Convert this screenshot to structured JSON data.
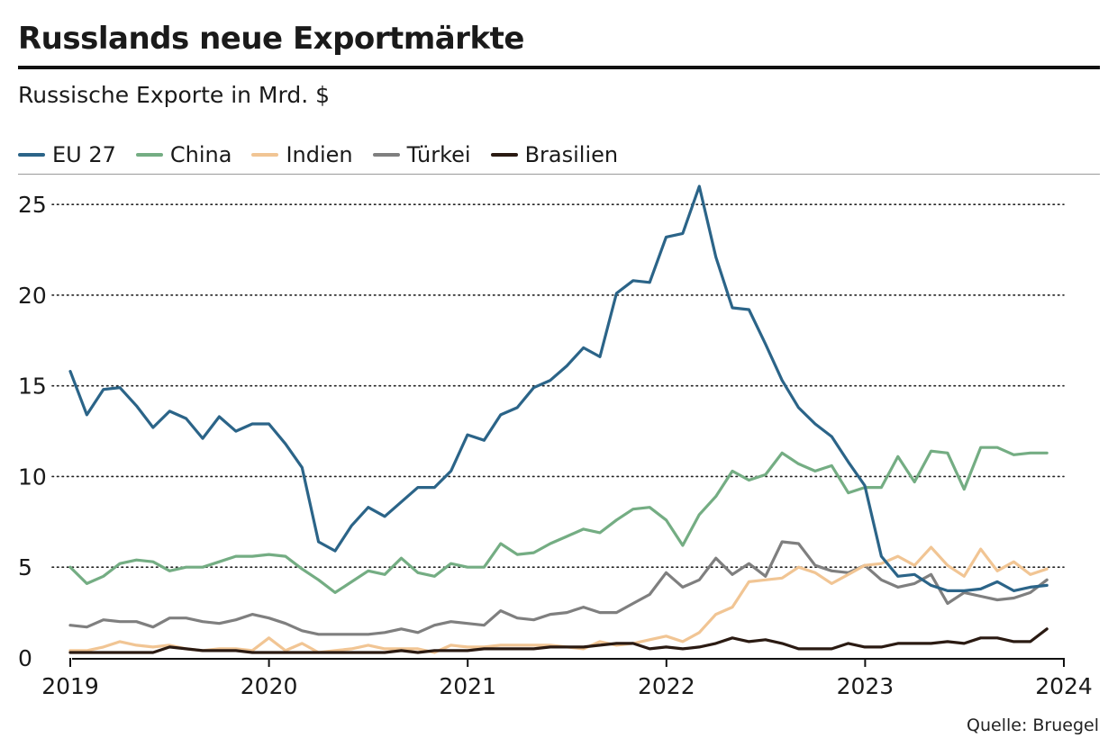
{
  "colors": {
    "eu": "#2b6488",
    "china": "#74ad83",
    "india": "#f1c594",
    "turkey": "#7f7f7f",
    "brazil": "#2a1a12"
  },
  "chart_data": {
    "type": "line",
    "title": "Russlands neue Exportmärkte",
    "subtitle": "Russische Exporte in Mrd. $",
    "source": "Quelle: Bruegel",
    "xlabel": "",
    "ylabel": "",
    "ylim": [
      0,
      26
    ],
    "xlim": [
      2019,
      2024
    ],
    "grid": "horizontal dotted",
    "legend_position": "top-left",
    "x_ticks": [
      "2019",
      "2020",
      "2021",
      "2022",
      "2023",
      "2024"
    ],
    "y_ticks": [
      "0",
      "5",
      "10",
      "15",
      "20",
      "25"
    ],
    "x_start": 2019.0,
    "x_step": 0.0833,
    "series": [
      {
        "key": "eu",
        "name": "EU 27",
        "values": [
          15.8,
          13.4,
          14.8,
          14.9,
          13.9,
          12.7,
          13.6,
          13.2,
          12.1,
          13.3,
          12.5,
          12.9,
          12.9,
          11.8,
          10.5,
          6.4,
          5.9,
          7.3,
          8.3,
          7.8,
          8.6,
          9.4,
          9.4,
          10.3,
          12.3,
          12.0,
          13.4,
          13.8,
          14.9,
          15.3,
          16.1,
          17.1,
          16.6,
          20.1,
          20.8,
          20.7,
          23.2,
          23.4,
          26.0,
          22.1,
          19.3,
          19.2,
          17.3,
          15.3,
          13.8,
          12.9,
          12.2,
          10.8,
          9.5,
          5.6,
          4.5,
          4.6,
          4.0,
          3.7,
          3.7,
          3.8,
          4.2,
          3.7,
          3.9,
          4.0
        ]
      },
      {
        "key": "china",
        "name": "China",
        "values": [
          5.0,
          4.1,
          4.5,
          5.2,
          5.4,
          5.3,
          4.8,
          5.0,
          5.0,
          5.3,
          5.6,
          5.6,
          5.7,
          5.6,
          4.9,
          4.3,
          3.6,
          4.2,
          4.8,
          4.6,
          5.5,
          4.7,
          4.5,
          5.2,
          5.0,
          5.0,
          6.3,
          5.7,
          5.8,
          6.3,
          6.7,
          7.1,
          6.9,
          7.6,
          8.2,
          8.3,
          7.6,
          6.2,
          7.9,
          8.9,
          10.3,
          9.8,
          10.1,
          11.3,
          10.7,
          10.3,
          10.6,
          9.1,
          9.4,
          9.4,
          11.1,
          9.7,
          11.4,
          11.3,
          9.3,
          11.6,
          11.6,
          11.2,
          11.3,
          11.3
        ]
      },
      {
        "key": "india",
        "name": "Indien",
        "values": [
          0.4,
          0.4,
          0.6,
          0.9,
          0.7,
          0.6,
          0.7,
          0.5,
          0.4,
          0.5,
          0.5,
          0.4,
          1.1,
          0.4,
          0.8,
          0.3,
          0.4,
          0.5,
          0.7,
          0.5,
          0.5,
          0.5,
          0.3,
          0.7,
          0.6,
          0.6,
          0.7,
          0.7,
          0.7,
          0.7,
          0.6,
          0.5,
          0.9,
          0.7,
          0.8,
          1.0,
          1.2,
          0.9,
          1.4,
          2.4,
          2.8,
          4.2,
          4.3,
          4.4,
          5.0,
          4.7,
          4.1,
          4.6,
          5.1,
          5.2,
          5.6,
          5.1,
          6.1,
          5.1,
          4.5,
          6.0,
          4.8,
          5.3,
          4.6,
          4.9
        ]
      },
      {
        "key": "turkey",
        "name": "Türkei",
        "values": [
          1.8,
          1.7,
          2.1,
          2.0,
          2.0,
          1.7,
          2.2,
          2.2,
          2.0,
          1.9,
          2.1,
          2.4,
          2.2,
          1.9,
          1.5,
          1.3,
          1.3,
          1.3,
          1.3,
          1.4,
          1.6,
          1.4,
          1.8,
          2.0,
          1.9,
          1.8,
          2.6,
          2.2,
          2.1,
          2.4,
          2.5,
          2.8,
          2.5,
          2.5,
          3.0,
          3.5,
          4.7,
          3.9,
          4.3,
          5.5,
          4.6,
          5.2,
          4.5,
          6.4,
          6.3,
          5.1,
          4.8,
          4.7,
          5.1,
          4.3,
          3.9,
          4.1,
          4.6,
          3.0,
          3.6,
          3.4,
          3.2,
          3.3,
          3.6,
          4.3
        ]
      },
      {
        "key": "brazil",
        "name": "Brasilien",
        "values": [
          0.3,
          0.3,
          0.3,
          0.3,
          0.3,
          0.3,
          0.6,
          0.5,
          0.4,
          0.4,
          0.4,
          0.3,
          0.3,
          0.3,
          0.3,
          0.3,
          0.3,
          0.3,
          0.3,
          0.3,
          0.4,
          0.3,
          0.4,
          0.4,
          0.4,
          0.5,
          0.5,
          0.5,
          0.5,
          0.6,
          0.6,
          0.6,
          0.7,
          0.8,
          0.8,
          0.5,
          0.6,
          0.5,
          0.6,
          0.8,
          1.1,
          0.9,
          1.0,
          0.8,
          0.5,
          0.5,
          0.5,
          0.8,
          0.6,
          0.6,
          0.8,
          0.8,
          0.8,
          0.9,
          0.8,
          1.1,
          1.1,
          0.9,
          0.9,
          1.6
        ]
      }
    ]
  }
}
